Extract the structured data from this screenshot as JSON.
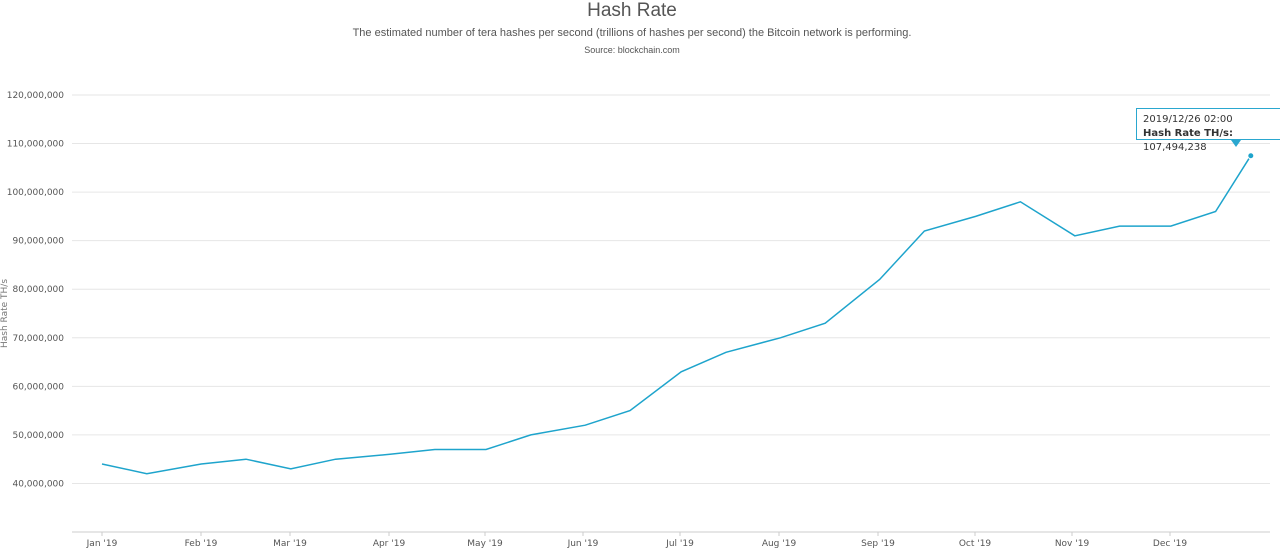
{
  "chart_data": {
    "type": "line",
    "title": "Hash Rate",
    "subtitle": "The estimated number of tera hashes per second (trillions of hashes per second) the Bitcoin network is performing.",
    "source": "Source: blockchain.com",
    "xlabel": "",
    "ylabel": "Hash Rate TH/s",
    "ylim": [
      30000000,
      120000000
    ],
    "yticks": [
      {
        "value": 40000000,
        "label": "40,000,000"
      },
      {
        "value": 50000000,
        "label": "50,000,000"
      },
      {
        "value": 60000000,
        "label": "60,000,000"
      },
      {
        "value": 70000000,
        "label": "70,000,000"
      },
      {
        "value": 80000000,
        "label": "80,000,000"
      },
      {
        "value": 90000000,
        "label": "90,000,000"
      },
      {
        "value": 100000000,
        "label": "100,000,000"
      },
      {
        "value": 110000000,
        "label": "110,000,000"
      },
      {
        "value": 120000000,
        "label": "120,000,000"
      }
    ],
    "xticks": [
      "Jan '19",
      "Feb '19",
      "Mar '19",
      "Apr '19",
      "May '19",
      "Jun '19",
      "Jul '19",
      "Aug '19",
      "Sep '19",
      "Oct '19",
      "Nov '19",
      "Dec '19"
    ],
    "grid": true,
    "line_color": "#1ea4cc",
    "x": [
      "2019-01-01",
      "2019-01-15",
      "2019-02-01",
      "2019-02-15",
      "2019-03-01",
      "2019-03-15",
      "2019-04-01",
      "2019-04-15",
      "2019-05-01",
      "2019-05-15",
      "2019-06-01",
      "2019-06-15",
      "2019-07-01",
      "2019-07-15",
      "2019-08-01",
      "2019-08-15",
      "2019-09-01",
      "2019-09-15",
      "2019-10-01",
      "2019-10-15",
      "2019-11-01",
      "2019-11-15",
      "2019-12-01",
      "2019-12-15",
      "2019-12-26"
    ],
    "series": [
      {
        "values": [
          44000000,
          42000000,
          44000000,
          45000000,
          43000000,
          45000000,
          46000000,
          47000000,
          47000000,
          50000000,
          52000000,
          55000000,
          63000000,
          67000000,
          70000000,
          73000000,
          82000000,
          92000000,
          95000000,
          98000000,
          91000000,
          93000000,
          93000000,
          96000000,
          107494238
        ]
      }
    ],
    "tooltip": {
      "date": "2019/12/26 02:00",
      "label": "Hash Rate TH/s:",
      "value": "107,494,238"
    }
  }
}
